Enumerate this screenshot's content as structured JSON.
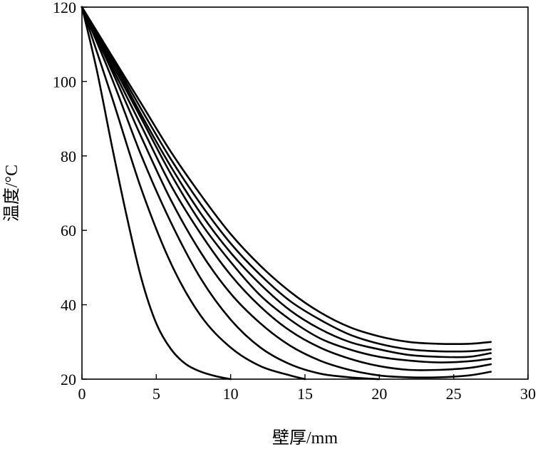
{
  "chart_data": {
    "type": "line",
    "title": "",
    "xlabel": "壁厚/mm",
    "ylabel": "温度/°C",
    "xlim": [
      0,
      30
    ],
    "ylim": [
      20,
      120
    ],
    "xticks": [
      0,
      5,
      10,
      15,
      20,
      25,
      30
    ],
    "yticks": [
      20,
      40,
      60,
      80,
      100,
      120
    ],
    "grid": false,
    "legend": "none",
    "line_color": "#000000",
    "series": [
      {
        "x": [
          0,
          1,
          2,
          3,
          4,
          5,
          6,
          7,
          8,
          9,
          10
        ],
        "y": [
          120,
          103,
          83,
          64,
          47,
          35,
          28,
          24,
          22,
          20.8,
          20
        ]
      },
      {
        "x": [
          0,
          2,
          4,
          6,
          8,
          10,
          12,
          14,
          15
        ],
        "y": [
          120,
          96,
          71,
          51,
          37,
          28.5,
          23.5,
          21,
          20
        ]
      },
      {
        "x": [
          0,
          2,
          4,
          6,
          8,
          10,
          12,
          14,
          16,
          18,
          20
        ],
        "y": [
          120,
          101,
          80,
          62,
          47,
          36,
          28.5,
          24,
          21.5,
          20.5,
          20
        ]
      },
      {
        "x": [
          0,
          2,
          4,
          6,
          8,
          10,
          12,
          14,
          16,
          18,
          20,
          22,
          24,
          26,
          27.5
        ],
        "y": [
          120,
          103,
          85,
          68,
          54,
          43,
          35,
          29,
          25,
          22.5,
          21,
          20.5,
          20.5,
          21,
          22
        ]
      },
      {
        "x": [
          0,
          2,
          4,
          6,
          8,
          10,
          12,
          14,
          16,
          18,
          20,
          22,
          24,
          26,
          27.5
        ],
        "y": [
          120,
          104,
          88,
          72,
          59,
          48,
          39.5,
          33,
          28.5,
          25.5,
          23.5,
          22.5,
          22.5,
          23,
          24
        ]
      },
      {
        "x": [
          0,
          2,
          4,
          6,
          8,
          10,
          12,
          14,
          16,
          18,
          20,
          22,
          24,
          26,
          27.5
        ],
        "y": [
          120,
          105,
          90,
          75,
          62,
          51.5,
          42.5,
          36,
          31,
          28,
          26,
          25,
          24.5,
          24.8,
          25.5
        ]
      },
      {
        "x": [
          0,
          2,
          4,
          6,
          8,
          10,
          12,
          14,
          16,
          18,
          20,
          22,
          24,
          26,
          27.5
        ],
        "y": [
          120,
          106,
          91,
          77,
          64.5,
          54,
          45.5,
          38.5,
          33.5,
          30,
          28,
          26.5,
          26,
          26,
          27
        ]
      },
      {
        "x": [
          0,
          2,
          4,
          6,
          8,
          10,
          12,
          14,
          16,
          18,
          20,
          22,
          24,
          26,
          27.5
        ],
        "y": [
          120,
          106.5,
          92.5,
          79,
          67,
          56.5,
          48,
          41,
          36,
          32,
          29.5,
          28,
          27.5,
          27.5,
          28
        ]
      },
      {
        "x": [
          0,
          2,
          4,
          6,
          8,
          10,
          12,
          14,
          16,
          18,
          20,
          22,
          24,
          26,
          27.5
        ],
        "y": [
          120,
          107,
          94,
          81,
          69.5,
          59,
          50.5,
          43.5,
          38,
          34,
          31.5,
          30,
          29.5,
          29.5,
          30
        ]
      }
    ]
  }
}
